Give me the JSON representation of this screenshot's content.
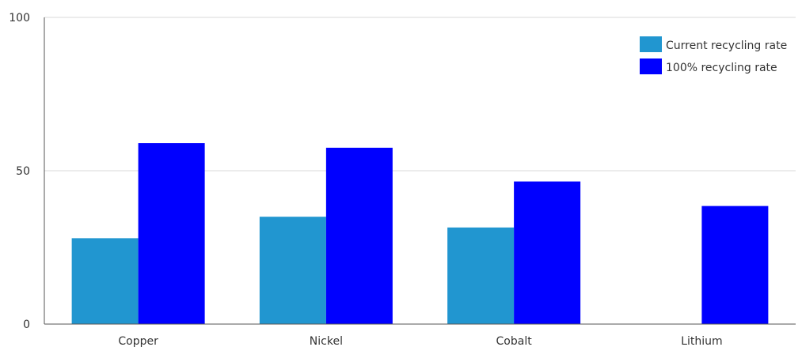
{
  "chart_data": {
    "type": "bar",
    "categories": [
      "Copper",
      "Nickel",
      "Cobalt",
      "Lithium"
    ],
    "series": [
      {
        "name": "Current recycling rate",
        "color": "#2196d0",
        "values": [
          28,
          35,
          31.5,
          0
        ]
      },
      {
        "name": "100% recycling rate",
        "color": "#0000ff",
        "values": [
          59,
          57.5,
          46.5,
          38.5
        ]
      }
    ],
    "yticks": [
      "0",
      "50",
      "100"
    ],
    "ylim": [
      0,
      100
    ],
    "grid": true,
    "legend_position": "top-right"
  }
}
